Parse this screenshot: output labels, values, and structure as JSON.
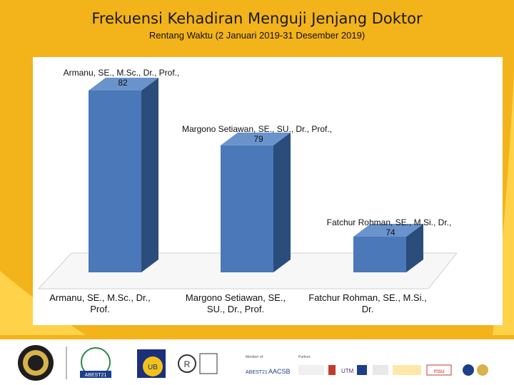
{
  "header": {
    "title": "Frekuensi Kehadiran Menguji Jenjang Doktor",
    "subtitle": "Rentang Waktu (2 Januari 2019-31 Desember 2019)"
  },
  "chart_data": {
    "type": "bar",
    "categories": [
      "Armanu, SE., M.Sc., Dr., Prof.",
      "Margono Setiawan, SE., SU., Dr., Prof.",
      "Fatchur Rohman, SE., M.Si., Dr."
    ],
    "values": [
      82,
      79,
      74
    ],
    "data_labels": [
      {
        "name": "Armanu, SE., M.Sc., Dr., Prof.,",
        "value": "82"
      },
      {
        "name": "Margono Setiawan, SE., SU., Dr., Prof.,",
        "value": "79"
      },
      {
        "name": "Fatchur Rohman, SE., M.Si., Dr.,",
        "value": "74"
      }
    ],
    "x_labels": [
      [
        "Armanu, SE., M.Sc., Dr.,",
        "Prof."
      ],
      [
        "Margono Setiawan, SE.,",
        "SU., Dr., Prof."
      ],
      [
        "Fatchur Rohman, SE., M.Si.,",
        "Dr."
      ]
    ],
    "title": "",
    "xlabel": "",
    "ylabel": "",
    "ylim": [
      72,
      83
    ],
    "grid": false,
    "legend": "none",
    "style": "3d-column",
    "colors": {
      "bar_front": "#4a78b8",
      "bar_side": "#2b4d7c",
      "bar_top": "#6a93cc"
    }
  },
  "footer": {
    "membership_label": "Member of:",
    "partner_label": "Partner:",
    "logo_texts": [
      "ABEST21",
      "UB",
      "AACSB",
      "UTM",
      "msu"
    ]
  },
  "theme": {
    "background": "#f3b31a",
    "panel": "#ffffff"
  }
}
